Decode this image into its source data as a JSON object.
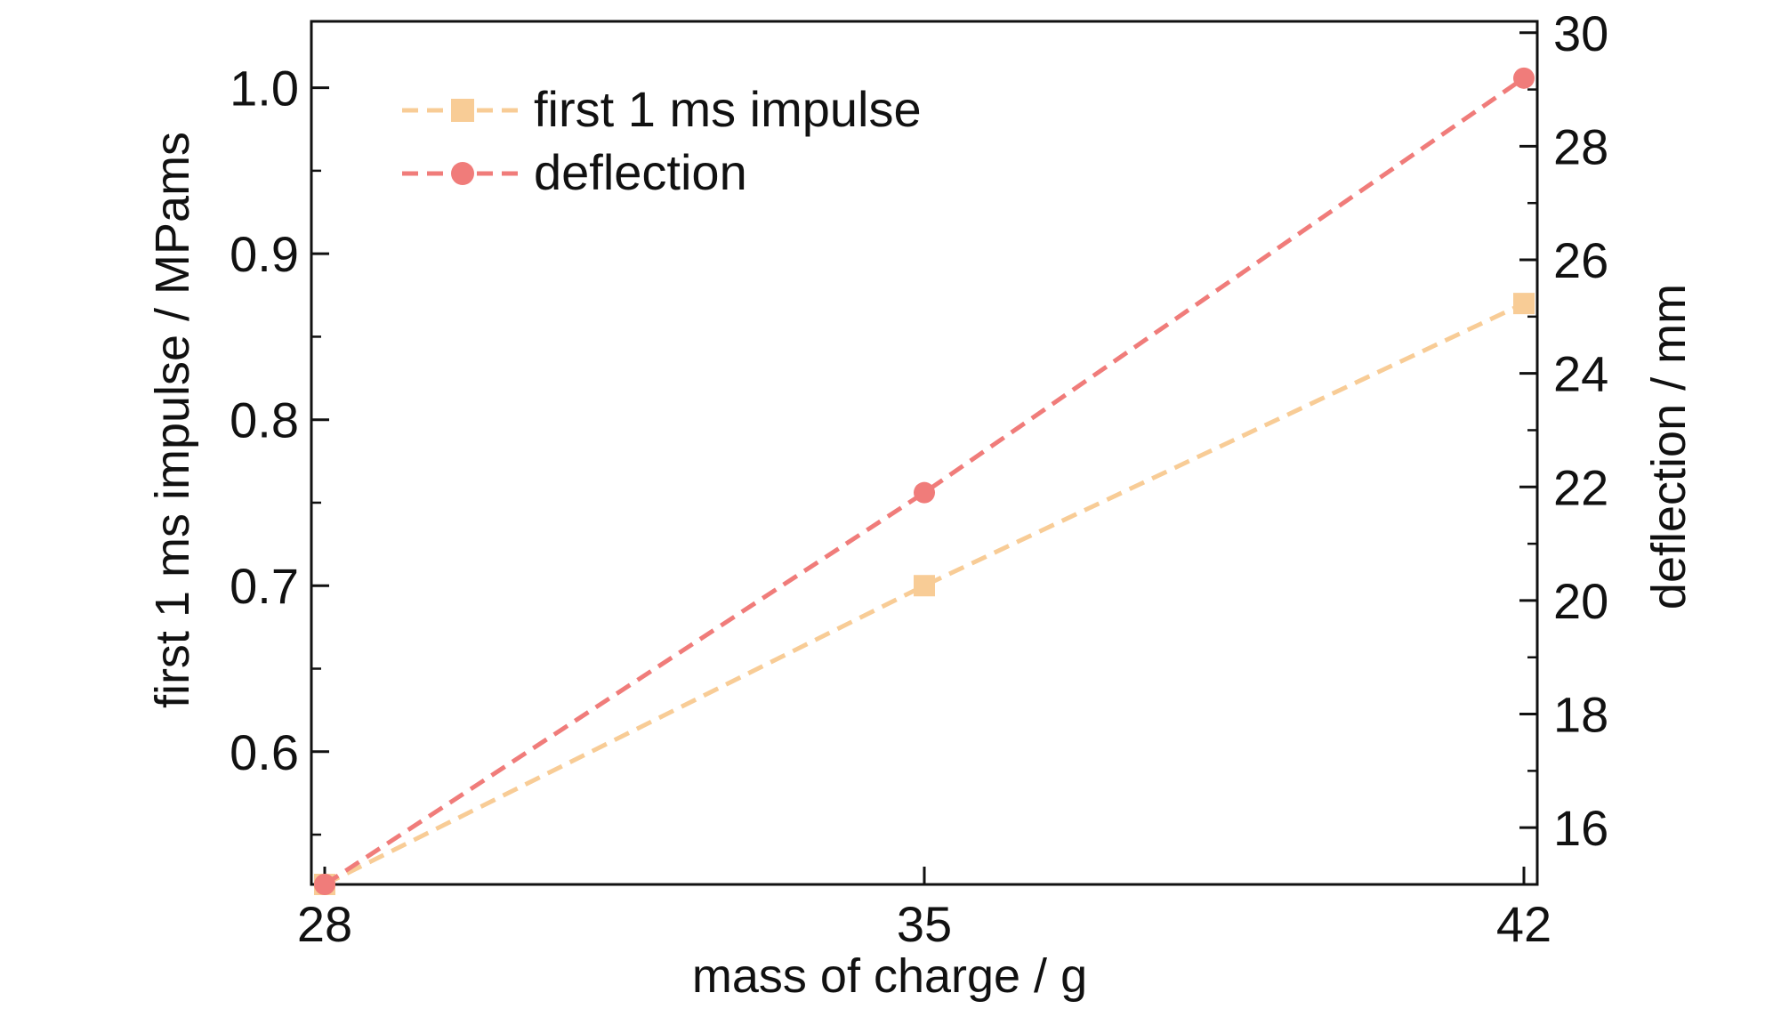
{
  "chart_data": {
    "type": "line",
    "x": [
      28,
      35,
      42
    ],
    "xlabel": "mass of charge / g",
    "xticks": [
      "28",
      "35",
      "42"
    ],
    "xlim": [
      28,
      42
    ],
    "y_left": {
      "label": "first 1 ms impulse / MPams",
      "lim": [
        0.52,
        1.04
      ],
      "ticks": [
        0.6,
        0.7,
        0.8,
        0.9,
        1.0
      ],
      "tick_labels": [
        "0.6",
        "0.7",
        "0.8",
        "0.9",
        "1.0"
      ]
    },
    "y_right": {
      "label": "deflection / mm",
      "lim": [
        15,
        30.2
      ],
      "ticks": [
        16,
        18,
        20,
        22,
        24,
        26,
        28,
        30
      ],
      "tick_labels": [
        "16",
        "18",
        "20",
        "22",
        "24",
        "26",
        "28",
        "30"
      ]
    },
    "series": [
      {
        "name": "first 1 ms impulse",
        "axis": "left",
        "values": [
          0.52,
          0.7,
          0.87
        ],
        "color": "#F8CC96",
        "marker": "square",
        "linestyle": "dashed"
      },
      {
        "name": "deflection",
        "axis": "right",
        "values": [
          15.0,
          21.9,
          29.2
        ],
        "color": "#F07C7A",
        "marker": "circle",
        "linestyle": "dashed"
      }
    ],
    "legend_position": "top-left",
    "grid": false
  }
}
